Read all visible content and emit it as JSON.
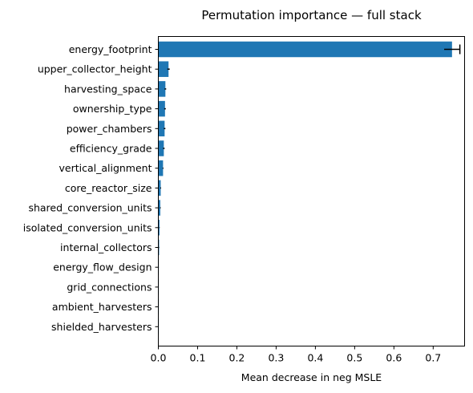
{
  "chart_data": {
    "type": "bar",
    "orientation": "horizontal",
    "title": "Permutation importance — full stack",
    "xlabel": "Mean decrease in neg MSLE",
    "ylabel": "",
    "xlim": [
      0,
      0.78
    ],
    "xticks": [
      "0.0",
      "0.1",
      "0.2",
      "0.3",
      "0.4",
      "0.5",
      "0.6",
      "0.7"
    ],
    "categories": [
      "energy_footprint",
      "upper_collector_height",
      "harvesting_space",
      "ownership_type",
      "power_chambers",
      "efficiency_grade",
      "vertical_alignment",
      "core_reactor_size",
      "shared_conversion_units",
      "isolated_conversion_units",
      "internal_collectors",
      "energy_flow_design",
      "grid_connections",
      "ambient_harvesters",
      "shielded_harvesters"
    ],
    "values": [
      0.748,
      0.026,
      0.018,
      0.017,
      0.016,
      0.014,
      0.012,
      0.006,
      0.005,
      0.003,
      0.002,
      0.001,
      0.0005,
      0.0003,
      0.0002
    ],
    "errors": [
      0.02,
      0.003,
      0.002,
      0.002,
      0.002,
      0.002,
      0.001,
      0.001,
      0.001,
      0.0005,
      0.0004,
      0.0002,
      0.0001,
      0.0001,
      0.0001
    ],
    "bar_color": "#1f77b4",
    "error_color": "#000000",
    "grid": false,
    "legend": "none"
  }
}
